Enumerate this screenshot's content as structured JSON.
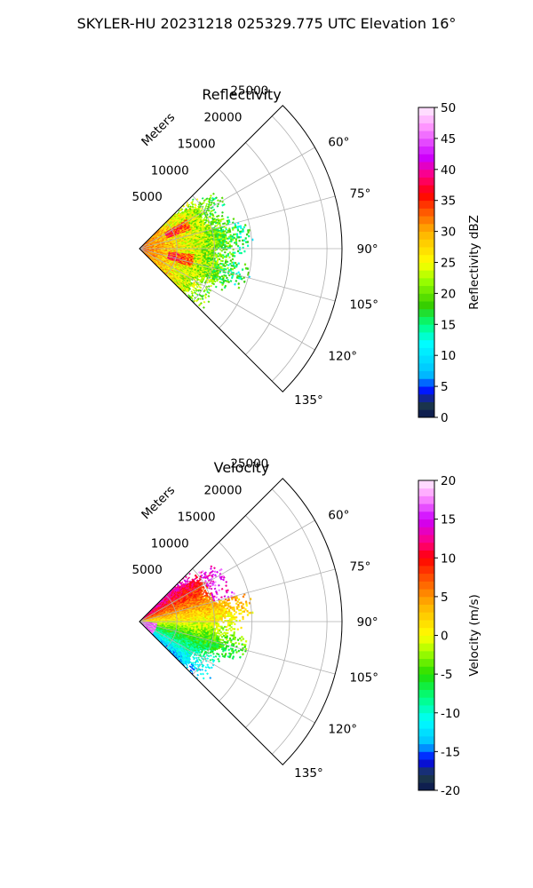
{
  "suptitle": "SKYLER-HU  20231218  025329.775 UTC Elevation 16°",
  "chart_data": [
    {
      "type": "heatmap",
      "title": "Reflectivity",
      "projection": "polar-sector",
      "theta_range_deg": [
        45,
        135
      ],
      "theta_ticks": [
        "60°",
        "75°",
        "90°",
        "105°",
        "120°",
        "135°"
      ],
      "r_label": "Meters",
      "r_ticks": [
        "5000",
        "10000",
        "15000",
        "20000",
        "25000"
      ],
      "r_max": 27000,
      "grid": true,
      "colorbar": {
        "label": "Reflectivity dBZ",
        "min": 0,
        "max": 50,
        "ticks": [
          "0",
          "5",
          "10",
          "15",
          "20",
          "25",
          "30",
          "35",
          "40",
          "45",
          "50"
        ],
        "stops": [
          [
            0,
            "#0a1450"
          ],
          [
            2.5,
            "#1f3f4a"
          ],
          [
            4,
            "#0000ff"
          ],
          [
            7,
            "#00bfff"
          ],
          [
            12,
            "#00ffff"
          ],
          [
            15,
            "#00ff80"
          ],
          [
            18,
            "#33cc00"
          ],
          [
            22,
            "#99ff00"
          ],
          [
            25,
            "#ffff00"
          ],
          [
            30,
            "#ffb000"
          ],
          [
            34,
            "#ff4000"
          ],
          [
            36,
            "#ff0000"
          ],
          [
            39,
            "#ff0080"
          ],
          [
            42,
            "#cc00ff"
          ],
          [
            47,
            "#ff99ff"
          ],
          [
            50,
            "#ffeeff"
          ]
        ]
      },
      "echo_extent_m": 14500,
      "field": "reflectivity"
    },
    {
      "type": "heatmap",
      "title": "Velocity",
      "projection": "polar-sector",
      "theta_range_deg": [
        45,
        135
      ],
      "theta_ticks": [
        "60°",
        "75°",
        "90°",
        "105°",
        "120°",
        "135°"
      ],
      "r_label": "Meters",
      "r_ticks": [
        "5000",
        "10000",
        "15000",
        "20000",
        "25000"
      ],
      "r_max": 27000,
      "grid": true,
      "colorbar": {
        "label": "Velocity (m/s)",
        "min": -20,
        "max": 20,
        "ticks": [
          "-20",
          "-15",
          "-10",
          "-5",
          "0",
          "5",
          "10",
          "15",
          "20"
        ],
        "stops": [
          [
            -20,
            "#0a1450"
          ],
          [
            -18,
            "#1f3f4a"
          ],
          [
            -16,
            "#0000ff"
          ],
          [
            -14,
            "#00bfff"
          ],
          [
            -11,
            "#00ffff"
          ],
          [
            -8,
            "#00ff80"
          ],
          [
            -5,
            "#22dd00"
          ],
          [
            -2,
            "#aaff00"
          ],
          [
            0,
            "#ffff00"
          ],
          [
            4,
            "#ffb000"
          ],
          [
            8,
            "#ff4000"
          ],
          [
            10,
            "#ff0000"
          ],
          [
            12,
            "#ff0080"
          ],
          [
            15,
            "#cc00ff"
          ],
          [
            18,
            "#ff99ff"
          ],
          [
            20,
            "#ffeeff"
          ]
        ]
      },
      "echo_extent_m": 14500,
      "field": "velocity"
    }
  ]
}
